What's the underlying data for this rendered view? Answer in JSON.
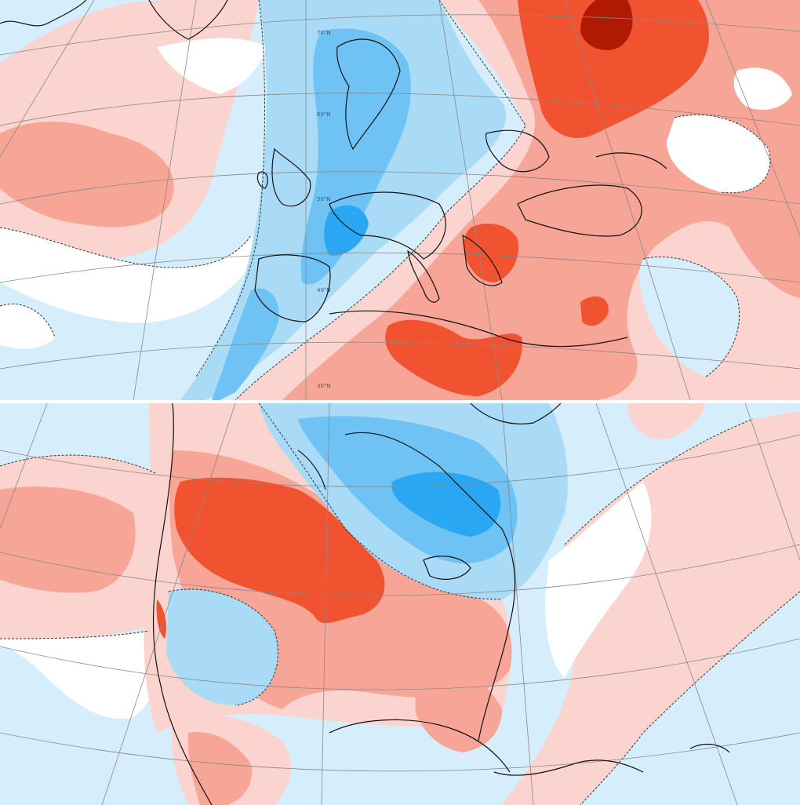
{
  "panels": [
    {
      "id": "europe",
      "latitude_labels": [
        "70°N",
        "60°N",
        "50°N",
        "40°N",
        "30°N"
      ]
    },
    {
      "id": "north-america",
      "latitude_labels": []
    }
  ],
  "colors": {
    "strong_cold": "#29a7f2",
    "cold": "#6ec2f4",
    "mild_cold": "#a9dbf7",
    "slight_cold": "#d6eefb",
    "neutral": "#ffffff",
    "slight_warm": "#fbd3cf",
    "warm": "#f7a597",
    "strong_warm": "#f1522f",
    "extreme_warm": "#b01a05",
    "coastline": "#111111",
    "graticule": "#888888"
  }
}
